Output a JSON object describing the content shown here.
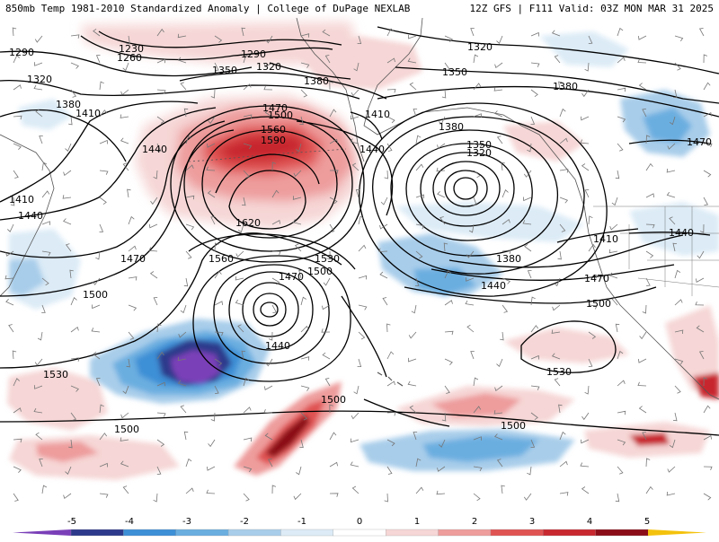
{
  "header": {
    "left": "850mb Temp 1981-2010 Standardized Anomaly | College of DuPage NEXLAB",
    "right": "12Z GFS | F111 Valid: 03Z MON MAR 31 2025"
  },
  "colorbar": {
    "ticks": [
      "-5",
      "-4",
      "-3",
      "-2",
      "-1",
      "0",
      "1",
      "2",
      "3",
      "4",
      "5"
    ],
    "colors": [
      "#7a3fb8",
      "#2d3a8c",
      "#3d8fd6",
      "#6aaee0",
      "#a8cdea",
      "#dcebf6",
      "#ffffff",
      "#f6d6d6",
      "#ee9c9c",
      "#e05353",
      "#c8282f",
      "#8b0d18",
      "#f4c20d"
    ]
  },
  "contour_labels": [
    {
      "id": "l1230",
      "text": "1230"
    },
    {
      "id": "l1260",
      "text": "1260"
    },
    {
      "id": "l1290a",
      "text": "1290"
    },
    {
      "id": "l1290b",
      "text": "1290"
    },
    {
      "id": "l1320a",
      "text": "1320"
    },
    {
      "id": "l1320b",
      "text": "1320"
    },
    {
      "id": "l1320c",
      "text": "1320"
    },
    {
      "id": "l1320d",
      "text": "1320"
    },
    {
      "id": "l1350a",
      "text": "1350"
    },
    {
      "id": "l1350b",
      "text": "1350"
    },
    {
      "id": "l1350c",
      "text": "1350"
    },
    {
      "id": "l1380a",
      "text": "1380"
    },
    {
      "id": "l1380b",
      "text": "1380"
    },
    {
      "id": "l1380c",
      "text": "1380"
    },
    {
      "id": "l1380d",
      "text": "1380"
    },
    {
      "id": "l1380e",
      "text": "1380"
    },
    {
      "id": "l1410a",
      "text": "1410"
    },
    {
      "id": "l1410b",
      "text": "1410"
    },
    {
      "id": "l1410c",
      "text": "1410"
    },
    {
      "id": "l1410d",
      "text": "1410"
    },
    {
      "id": "l1440a",
      "text": "1440"
    },
    {
      "id": "l1440b",
      "text": "1440"
    },
    {
      "id": "l1440c",
      "text": "1440"
    },
    {
      "id": "l1440d",
      "text": "1440"
    },
    {
      "id": "l1440e",
      "text": "1440"
    },
    {
      "id": "l1440f",
      "text": "1440"
    },
    {
      "id": "l1470a",
      "text": "1470"
    },
    {
      "id": "l1470b",
      "text": "1470"
    },
    {
      "id": "l1470c",
      "text": "1470"
    },
    {
      "id": "l1470d",
      "text": "1470"
    },
    {
      "id": "l1470e",
      "text": "1470"
    },
    {
      "id": "l1500a",
      "text": "1500"
    },
    {
      "id": "l1500b",
      "text": "1500"
    },
    {
      "id": "l1500c",
      "text": "1500"
    },
    {
      "id": "l1500d",
      "text": "1500"
    },
    {
      "id": "l1500e",
      "text": "1500"
    },
    {
      "id": "l1500f",
      "text": "1500"
    },
    {
      "id": "l1500g",
      "text": "1500"
    },
    {
      "id": "l1530a",
      "text": "1530"
    },
    {
      "id": "l1530b",
      "text": "1530"
    },
    {
      "id": "l1530c",
      "text": "1530"
    },
    {
      "id": "l1560a",
      "text": "1560"
    },
    {
      "id": "l1560b",
      "text": "1560"
    },
    {
      "id": "l1590",
      "text": "1590"
    },
    {
      "id": "l1620",
      "text": "1620"
    }
  ]
}
